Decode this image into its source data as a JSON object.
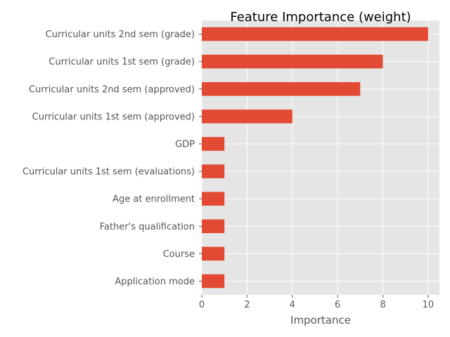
{
  "chart_data": {
    "type": "bar",
    "orientation": "horizontal",
    "title": "Feature Importance (weight)",
    "xlabel": "Importance",
    "ylabel": "",
    "xlim": [
      0,
      10.5
    ],
    "xticks": [
      0,
      2,
      4,
      6,
      8,
      10
    ],
    "grid": true,
    "bar_color": "#E24A33",
    "background_color": "#E5E5E5",
    "categories": [
      "Curricular units 2nd sem (grade)",
      "Curricular units 1st sem (grade)",
      "Curricular units 2nd sem (approved)",
      "Curricular units 1st sem (approved)",
      "GDP",
      "Curricular units 1st sem (evaluations)",
      "Age at enrollment",
      "Father's qualification",
      "Course",
      "Application mode"
    ],
    "values": [
      10,
      8,
      7,
      4,
      1,
      1,
      1,
      1,
      1,
      1
    ]
  }
}
